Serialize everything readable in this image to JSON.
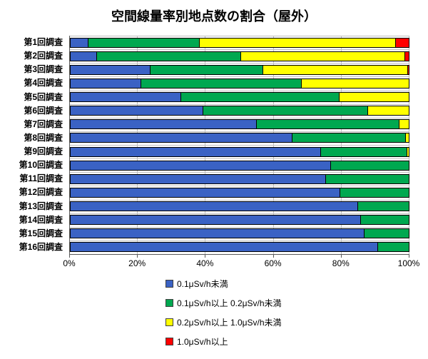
{
  "title": "空間線量率別地点数の割合（屋外）",
  "colors": {
    "series_blue": "#3A62C4",
    "series_green": "#00A850",
    "series_yellow": "#FFFF00",
    "series_red": "#FF0000",
    "gridline": "#BFBFBF",
    "axis": "#595959",
    "bar_border": "#000000",
    "background": "#FFFFFF"
  },
  "x_axis": {
    "tick_labels": [
      "0%",
      "20%",
      "40%",
      "60%",
      "80%",
      "100%"
    ],
    "tick_values": [
      0,
      20,
      40,
      60,
      80,
      100
    ]
  },
  "legend": [
    {
      "label": "0.1μSv/h未満",
      "color": "#3A62C4"
    },
    {
      "label": "0.1μSv/h以上 0.2μSv/h未満",
      "color": "#00A850"
    },
    {
      "label": "0.2μSv/h以上 1.0μSv/h未満",
      "color": "#FFFF00"
    },
    {
      "label": "1.0μSv/h以上",
      "color": "#FF0000"
    }
  ],
  "chart_data": {
    "type": "bar",
    "orientation": "horizontal",
    "stacked": true,
    "title": "空間線量率別地点数の割合（屋外）",
    "categories": [
      "第1回調査",
      "第2回調査",
      "第3回調査",
      "第4回調査",
      "第5回調査",
      "第6回調査",
      "第7回調査",
      "第8回調査",
      "第9回調査",
      "第10回調査",
      "第11回調査",
      "第12回調査",
      "第13回調査",
      "第14回調査",
      "第15回調査",
      "第16回調査"
    ],
    "series": [
      {
        "name": "0.1μSv/h未満",
        "color": "#3A62C4",
        "values": [
          5.0,
          7.6,
          23.4,
          20.6,
          32.5,
          39.0,
          54.9,
          65.4,
          73.8,
          76.8,
          75.4,
          79.6,
          84.8,
          85.7,
          86.8,
          90.8
        ]
      },
      {
        "name": "0.1μSv/h以上 0.2μSv/h未満",
        "color": "#00A850",
        "values": [
          32.9,
          42.7,
          33.3,
          47.6,
          46.9,
          48.8,
          42.2,
          33.5,
          25.5,
          23.2,
          24.6,
          20.4,
          15.2,
          14.3,
          13.2,
          9.2
        ]
      },
      {
        "name": "0.2μSv/h以上 1.0μSv/h未満",
        "color": "#FFFF00",
        "values": [
          58.0,
          48.4,
          42.8,
          31.8,
          20.6,
          12.2,
          2.9,
          1.1,
          0.7,
          0,
          0,
          0,
          0,
          0,
          0,
          0
        ]
      },
      {
        "name": "1.0μSv/h以上",
        "color": "#FF0000",
        "values": [
          4.1,
          1.3,
          0.5,
          0,
          0,
          0,
          0,
          0,
          0,
          0,
          0,
          0,
          0,
          0,
          0,
          0
        ]
      }
    ],
    "xlim": [
      0,
      100
    ],
    "x_tick_values": [
      0,
      20,
      40,
      60,
      80,
      100
    ],
    "grid": true,
    "legend_position": "bottom"
  }
}
